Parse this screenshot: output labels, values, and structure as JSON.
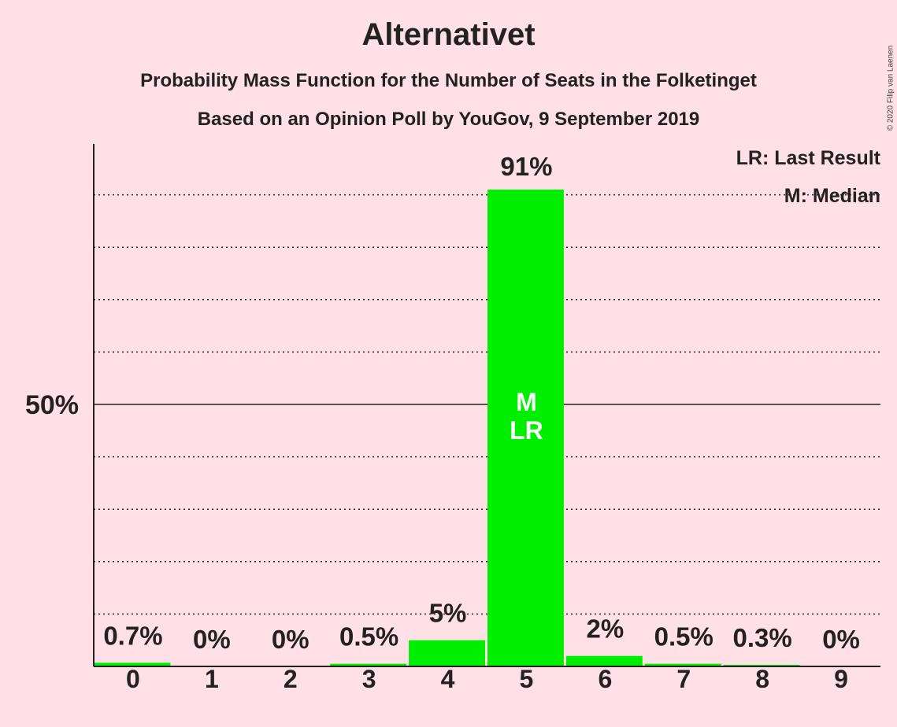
{
  "chart_data": {
    "type": "bar",
    "title": "Alternativet",
    "subtitle": "Probability Mass Function for the Number of Seats in the Folketinget",
    "source": "Based on an Opinion Poll by YouGov, 9 September 2019",
    "copyright": "© 2020 Filip van Laenen",
    "categories": [
      "0",
      "1",
      "2",
      "3",
      "4",
      "5",
      "6",
      "7",
      "8",
      "9"
    ],
    "values": [
      0.7,
      0,
      0,
      0.5,
      5,
      91,
      2,
      0.5,
      0.3,
      0
    ],
    "value_labels": [
      "0.7%",
      "0%",
      "0%",
      "0.5%",
      "5%",
      "91%",
      "2%",
      "0.5%",
      "0.3%",
      "0%"
    ],
    "ylim": [
      0,
      100
    ],
    "y_ticks": [
      {
        "value": 50,
        "label": "50%"
      }
    ],
    "gridlines": [
      10,
      20,
      30,
      40,
      60,
      70,
      80,
      90
    ],
    "median_seat": "5",
    "last_result_seat": "5",
    "median_marker": "M",
    "last_result_marker": "LR",
    "legend": [
      "LR: Last Result",
      "M: Median"
    ],
    "legend_position": "top-right",
    "colors": {
      "background": "#ffe0e6",
      "bar": "#00ee00",
      "text": "#222222",
      "marker_text": "#ffffff"
    }
  }
}
